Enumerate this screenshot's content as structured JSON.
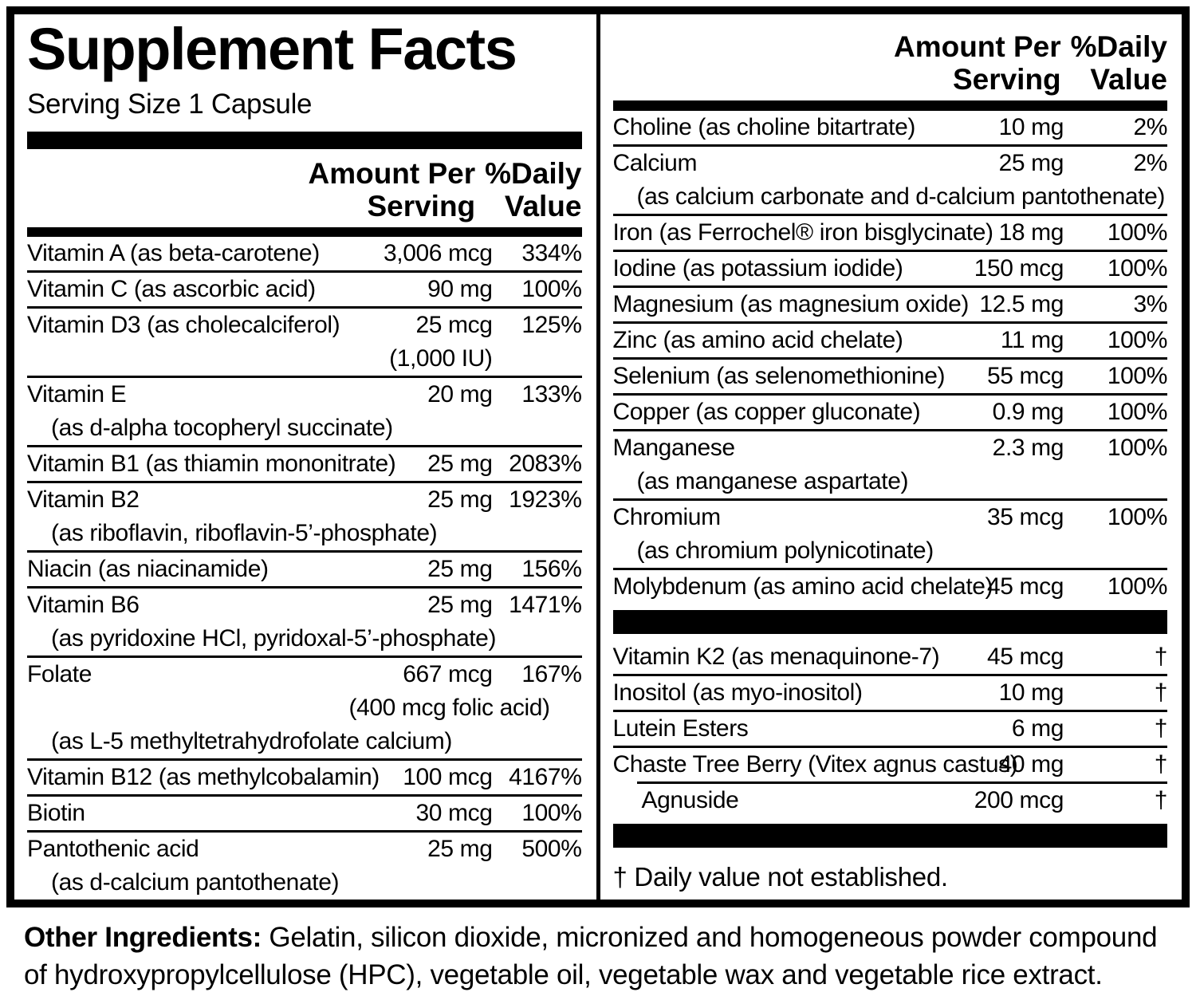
{
  "title": "Supplement Facts",
  "serving_size": "Serving Size 1 Capsule",
  "columns_header": {
    "amount": "Amount Per\nServing",
    "daily": "%Daily\nValue"
  },
  "colors": {
    "ink": "#000000",
    "paper": "#ffffff"
  },
  "left_rows": [
    {
      "type": "main",
      "name": "Vitamin A (as beta-carotene)",
      "amount": "3,006 mcg",
      "percent": "334%"
    },
    {
      "type": "main",
      "name": "Vitamin C (as ascorbic acid)",
      "amount": "90 mg",
      "percent": "100%"
    },
    {
      "type": "main",
      "name": "Vitamin D3 (as cholecalciferol)",
      "amount": "25 mcg",
      "percent": "125%"
    },
    {
      "type": "cont",
      "amount": "(1,000 IU)"
    },
    {
      "type": "main",
      "name": "Vitamin E",
      "amount": "20 mg",
      "percent": "133%"
    },
    {
      "type": "cont",
      "name": "(as d-alpha tocopheryl succinate)"
    },
    {
      "type": "main",
      "name": "Vitamin B1 (as thiamin mononitrate)",
      "amount": "25 mg",
      "percent": "2083%"
    },
    {
      "type": "main",
      "name": "Vitamin B2",
      "amount": "25 mg",
      "percent": "1923%"
    },
    {
      "type": "cont",
      "name": "(as riboflavin, riboflavin-5’-phosphate)"
    },
    {
      "type": "main",
      "name": "Niacin (as niacinamide)",
      "amount": "25 mg",
      "percent": "156%"
    },
    {
      "type": "main",
      "name": "Vitamin B6",
      "amount": "25 mg",
      "percent": "1471%"
    },
    {
      "type": "cont",
      "name": "(as pyridoxine HCl, pyridoxal-5’-phosphate)"
    },
    {
      "type": "main",
      "name": "Folate",
      "amount": "667 mcg",
      "percent": "167%"
    },
    {
      "type": "cont",
      "amount": "(400 mcg folic acid)"
    },
    {
      "type": "cont",
      "name": "(as L-5 methyltetrahydrofolate calcium)"
    },
    {
      "type": "main",
      "name": "Vitamin B12 (as methylcobalamin)",
      "amount": "100 mcg",
      "percent": "4167%"
    },
    {
      "type": "main",
      "name": "Biotin",
      "amount": "30 mcg",
      "percent": "100%"
    },
    {
      "type": "main",
      "name": "Pantothenic acid",
      "amount": "25 mg",
      "percent": "500%"
    },
    {
      "type": "cont",
      "name": "(as d-calcium pantothenate)"
    }
  ],
  "right_top_rows": [
    {
      "type": "main",
      "name": "Choline (as choline bitartrate)",
      "amount": "10 mg",
      "percent": "2%"
    },
    {
      "type": "main",
      "name": "Calcium",
      "amount": "25 mg",
      "percent": "2%"
    },
    {
      "type": "cont",
      "name": "(as calcium carbonate and d-calcium pantothenate)"
    },
    {
      "type": "main",
      "name": "Iron (as Ferrochel® iron bisglycinate)",
      "amount": "18 mg",
      "percent": "100%"
    },
    {
      "type": "main",
      "name": "Iodine (as potassium iodide)",
      "amount": "150 mcg",
      "percent": "100%"
    },
    {
      "type": "main",
      "name": "Magnesium (as magnesium oxide)",
      "amount": "12.5 mg",
      "percent": "3%"
    },
    {
      "type": "main",
      "name": "Zinc (as amino acid chelate)",
      "amount": "11 mg",
      "percent": "100%"
    },
    {
      "type": "main",
      "name": "Selenium (as selenomethionine)",
      "amount": "55 mcg",
      "percent": "100%"
    },
    {
      "type": "main",
      "name": "Copper (as copper gluconate)",
      "amount": "0.9 mg",
      "percent": "100%"
    },
    {
      "type": "main",
      "name": "Manganese",
      "amount": "2.3 mg",
      "percent": "100%"
    },
    {
      "type": "cont",
      "name": "(as manganese aspartate)"
    },
    {
      "type": "main",
      "name": "Chromium",
      "amount": "35 mcg",
      "percent": "100%"
    },
    {
      "type": "cont",
      "name": "(as chromium polynicotinate)"
    },
    {
      "type": "main",
      "name": "Molybdenum (as amino acid chelate)",
      "amount": "45 mcg",
      "percent": "100%"
    }
  ],
  "right_mid_rows": [
    {
      "type": "main",
      "name": "Vitamin K2 (as menaquinone-7)",
      "amount": "45 mcg",
      "percent": "†"
    },
    {
      "type": "main",
      "name": "Inositol (as myo-inositol)",
      "amount": "10 mg",
      "percent": "†"
    },
    {
      "type": "main",
      "name": "Lutein Esters",
      "amount": "6 mg",
      "percent": "†"
    },
    {
      "type": "main",
      "name": "Chaste Tree Berry (Vitex agnus castus)",
      "amount": "40 mg",
      "percent": "†"
    },
    {
      "type": "main indent-sep indented",
      "name": "Agnuside",
      "amount": "200 mcg",
      "percent": "†"
    }
  ],
  "footnote": "† Daily value not established.",
  "other_ingredients": {
    "label": "Other Ingredients:",
    "text": " Gelatin, silicon dioxide, micronized and homogeneous powder compound of hydroxypropylcellulose (HPC), vegetable oil, vegetable wax and vegetable rice extract."
  }
}
